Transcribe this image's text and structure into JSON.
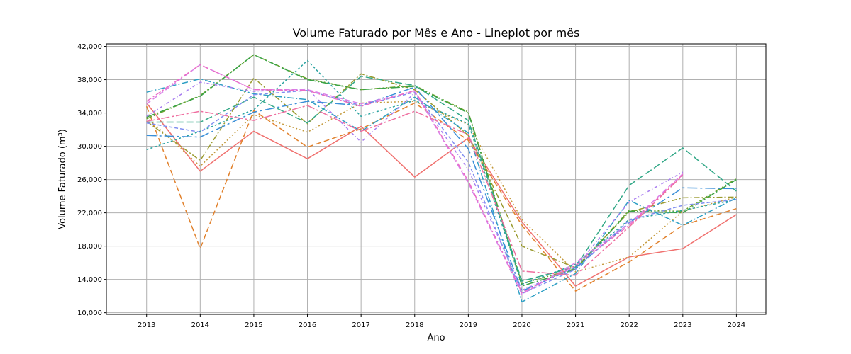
{
  "chart_data": {
    "type": "line",
    "title": "Volume Faturado por Mês e Ano - Lineplot por mês",
    "xlabel": "Ano",
    "ylabel": "Volume Faturado (m³)",
    "x": [
      2013,
      2014,
      2015,
      2016,
      2017,
      2018,
      2019,
      2020,
      2021,
      2022,
      2023,
      2024
    ],
    "xlim": [
      2012.25,
      2024.55
    ],
    "ylim": [
      9800,
      42300
    ],
    "yticks": [
      10000,
      14000,
      18000,
      22000,
      26000,
      30000,
      34000,
      38000,
      42000
    ],
    "ytick_labels": [
      "10,000",
      "14,000",
      "18,000",
      "22,000",
      "26,000",
      "30,000",
      "34,000",
      "38,000",
      "42,000"
    ],
    "grid": true,
    "legend": "none",
    "series": [
      {
        "color": "#f0706e",
        "dash": "",
        "values": [
          35200,
          27000,
          31800,
          28500,
          32400,
          26300,
          31000,
          20900,
          13200,
          16700,
          17700,
          21800
        ]
      },
      {
        "color": "#e1812c",
        "dash": "8 4",
        "values": [
          34800,
          17700,
          34300,
          29900,
          32100,
          35200,
          30700,
          20500,
          12600,
          16100,
          20500,
          22500
        ]
      },
      {
        "color": "#c49a3d",
        "dash": "2 3",
        "values": [
          33500,
          27600,
          33800,
          31700,
          35200,
          35400,
          32600,
          21200,
          14900,
          16700,
          22200,
          23900
        ]
      },
      {
        "color": "#9a9a2e",
        "dash": "8 3 2 3",
        "values": [
          33000,
          28300,
          38200,
          32700,
          38700,
          36800,
          31300,
          18000,
          15400,
          22100,
          23800,
          23900
        ]
      },
      {
        "color": "#6ca22b",
        "dash": "8 3 2 3 2 3",
        "values": [
          33300,
          36100,
          41000,
          38100,
          36800,
          37300,
          34100,
          13500,
          15300,
          22300,
          22200,
          26100
        ]
      },
      {
        "color": "#3aa346",
        "dash": "12 3 2 3",
        "values": [
          33500,
          36000,
          41000,
          38000,
          36800,
          37200,
          34000,
          13200,
          15200,
          22200,
          22000,
          26000
        ]
      },
      {
        "color": "#32a887",
        "dash": "10 4",
        "values": [
          32900,
          32900,
          35900,
          32800,
          38400,
          37300,
          33100,
          13800,
          15500,
          25300,
          29800,
          24600
        ]
      },
      {
        "color": "#2aa3a0",
        "dash": "3 3",
        "values": [
          29600,
          31800,
          34400,
          40300,
          33600,
          35500,
          32700,
          13400,
          15800,
          21200,
          22300,
          23600
        ]
      },
      {
        "color": "#2d9fc4",
        "dash": "9 3 2 3",
        "values": [
          36500,
          38100,
          36300,
          35600,
          31800,
          35900,
          31600,
          11300,
          14700,
          23500,
          20500,
          23800
        ]
      },
      {
        "color": "#3a8fd8",
        "dash": "14 4 3 4",
        "values": [
          31300,
          31100,
          34100,
          35400,
          34900,
          37100,
          29700,
          12600,
          15400,
          20800,
          25000,
          24900
        ]
      },
      {
        "color": "#7f8df0",
        "dash": "5 3",
        "values": [
          32800,
          31700,
          36200,
          36700,
          34900,
          36500,
          28100,
          12300,
          15200,
          21100,
          22900,
          23600
        ]
      },
      {
        "color": "#a87df0",
        "dash": "4 3 1 3",
        "values": [
          33600,
          37700,
          36600,
          36900,
          30500,
          36400,
          27200,
          12700,
          15500,
          23300,
          26900,
          null
        ]
      },
      {
        "color": "#d97fe8",
        "dash": "7 4",
        "values": [
          35100,
          39800,
          36800,
          36800,
          35100,
          36600,
          25600,
          12200,
          16000,
          20700,
          26700,
          null
        ]
      },
      {
        "color": "#ea6cc7",
        "dash": "8 3 2 3",
        "values": [
          35400,
          39800,
          36800,
          36700,
          34800,
          36700,
          25800,
          12400,
          15700,
          20500,
          26600,
          null
        ]
      },
      {
        "color": "#ef6fa0",
        "dash": "12 3 3 3",
        "values": [
          33000,
          34200,
          33100,
          34900,
          31800,
          34200,
          31400,
          15000,
          14500,
          20300,
          26500,
          null
        ]
      }
    ]
  }
}
